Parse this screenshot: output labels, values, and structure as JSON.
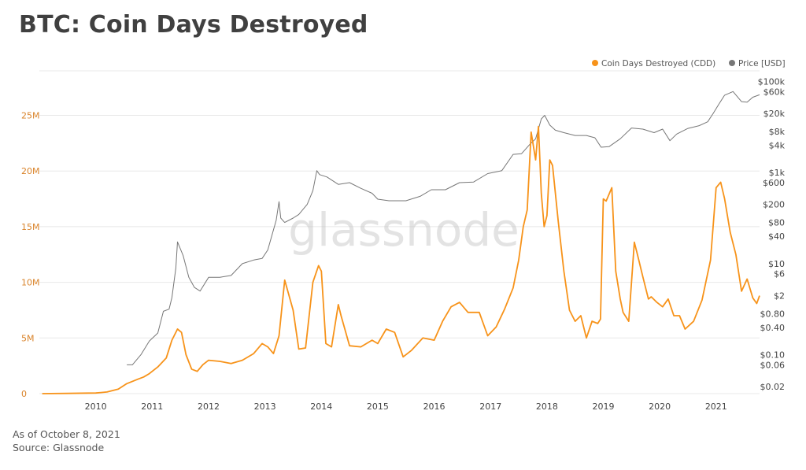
{
  "title": "BTC: Coin Days Destroyed",
  "footer": {
    "as_of": "As of October 8, 2021",
    "source": "Source: Glassnode"
  },
  "watermark": "glassnode",
  "colors": {
    "cdd": "#f7931a",
    "price": "#777777",
    "cdd_axis": "#d9832a",
    "axis_text": "#444444",
    "grid": "#e8e8e8"
  },
  "chart_data": {
    "type": "line",
    "title": "BTC: Coin Days Destroyed",
    "legend": {
      "placement": "top-right",
      "entries": [
        "Coin Days Destroyed (CDD)",
        "Price [USD]"
      ]
    },
    "x_ticks": [
      "2010",
      "2011",
      "2012",
      "2013",
      "2014",
      "2015",
      "2016",
      "2017",
      "2018",
      "2019",
      "2020",
      "2021"
    ],
    "x_range": [
      2009.0,
      2021.77
    ],
    "y_left": {
      "label": "",
      "ticks": [
        "0",
        "5M",
        "10M",
        "15M",
        "20M",
        "25M"
      ],
      "tick_values": [
        0,
        5000000,
        10000000,
        15000000,
        20000000,
        25000000
      ],
      "range": [
        0,
        29000000
      ],
      "scale": "linear"
    },
    "y_right": {
      "label": "",
      "ticks": [
        "$100k",
        "$60k",
        "$20k",
        "$8k",
        "$4k",
        "$1k",
        "$600",
        "$200",
        "$80",
        "$40",
        "$10",
        "$6",
        "$2",
        "$0.80",
        "$0.40",
        "$0.10",
        "$0.06",
        "$0.02"
      ],
      "tick_values": [
        100000,
        60000,
        20000,
        8000,
        4000,
        1000,
        600,
        200,
        80,
        40,
        10,
        6,
        2,
        0.8,
        0.4,
        0.1,
        0.06,
        0.02
      ],
      "scale": "log"
    },
    "grid": true,
    "series": [
      {
        "name": "Coin Days Destroyed (CDD)",
        "axis": "left",
        "x": [
          2009.05,
          2009.5,
          2010.0,
          2010.2,
          2010.4,
          2010.55,
          2010.75,
          2010.85,
          2010.95,
          2011.1,
          2011.25,
          2011.35,
          2011.45,
          2011.52,
          2011.6,
          2011.7,
          2011.8,
          2011.9,
          2012.0,
          2012.2,
          2012.4,
          2012.6,
          2012.8,
          2012.95,
          2013.05,
          2013.15,
          2013.25,
          2013.35,
          2013.5,
          2013.6,
          2013.72,
          2013.85,
          2013.95,
          2014.0,
          2014.08,
          2014.18,
          2014.3,
          2014.35,
          2014.5,
          2014.7,
          2014.9,
          2015.0,
          2015.15,
          2015.3,
          2015.45,
          2015.6,
          2015.8,
          2016.0,
          2016.15,
          2016.3,
          2016.45,
          2016.6,
          2016.8,
          2016.95,
          2017.1,
          2017.25,
          2017.4,
          2017.5,
          2017.58,
          2017.65,
          2017.72,
          2017.8,
          2017.85,
          2017.9,
          2017.95,
          2018.0,
          2018.05,
          2018.1,
          2018.2,
          2018.3,
          2018.4,
          2018.5,
          2018.6,
          2018.7,
          2018.8,
          2018.9,
          2018.95,
          2019.0,
          2019.05,
          2019.15,
          2019.22,
          2019.3,
          2019.35,
          2019.45,
          2019.55,
          2019.6,
          2019.7,
          2019.8,
          2019.85,
          2019.95,
          2020.05,
          2020.15,
          2020.25,
          2020.35,
          2020.45,
          2020.6,
          2020.75,
          2020.9,
          2021.0,
          2021.08,
          2021.15,
          2021.25,
          2021.35,
          2021.45,
          2021.55,
          2021.65,
          2021.72,
          2021.77
        ],
        "y": [
          0,
          20000,
          60000,
          150000,
          400000,
          900000,
          1300000,
          1500000,
          1800000,
          2400000,
          3200000,
          4800000,
          5800000,
          5500000,
          3500000,
          2200000,
          2000000,
          2600000,
          3000000,
          2900000,
          2700000,
          3000000,
          3600000,
          4500000,
          4200000,
          3600000,
          5200000,
          10200000,
          7500000,
          4000000,
          4100000,
          10000000,
          11500000,
          11000000,
          4500000,
          4200000,
          8000000,
          7000000,
          4300000,
          4200000,
          4800000,
          4500000,
          5800000,
          5500000,
          3300000,
          3900000,
          5000000,
          4800000,
          6500000,
          7800000,
          8200000,
          7300000,
          7300000,
          5200000,
          6000000,
          7600000,
          9500000,
          12000000,
          15000000,
          16500000,
          23500000,
          21000000,
          24000000,
          18000000,
          15000000,
          16000000,
          21000000,
          20500000,
          15500000,
          11000000,
          7500000,
          6500000,
          7000000,
          5000000,
          6500000,
          6300000,
          6700000,
          17500000,
          17300000,
          18500000,
          11000000,
          8500000,
          7300000,
          6500000,
          13600000,
          12600000,
          10500000,
          8500000,
          8700000,
          8200000,
          7800000,
          8500000,
          7000000,
          7000000,
          5800000,
          6500000,
          8400000,
          12000000,
          18500000,
          19000000,
          17500000,
          14500000,
          12500000,
          9200000,
          10300000,
          8600000,
          8100000,
          8800000
        ]
      },
      {
        "name": "Price [USD]",
        "axis": "right",
        "x": [
          2010.55,
          2010.65,
          2010.8,
          2010.95,
          2011.1,
          2011.2,
          2011.3,
          2011.35,
          2011.42,
          2011.45,
          2011.55,
          2011.65,
          2011.75,
          2011.85,
          2012.0,
          2012.2,
          2012.4,
          2012.6,
          2012.8,
          2012.95,
          2013.05,
          2013.2,
          2013.25,
          2013.28,
          2013.35,
          2013.5,
          2013.6,
          2013.75,
          2013.85,
          2013.92,
          2013.97,
          2014.1,
          2014.3,
          2014.5,
          2014.7,
          2014.9,
          2015.0,
          2015.2,
          2015.5,
          2015.75,
          2015.95,
          2016.2,
          2016.45,
          2016.7,
          2016.95,
          2017.2,
          2017.4,
          2017.55,
          2017.7,
          2017.8,
          2017.9,
          2017.96,
          2018.05,
          2018.15,
          2018.3,
          2018.5,
          2018.7,
          2018.85,
          2018.96,
          2019.1,
          2019.3,
          2019.5,
          2019.7,
          2019.9,
          2020.05,
          2020.18,
          2020.3,
          2020.5,
          2020.7,
          2020.85,
          2020.95,
          2021.05,
          2021.15,
          2021.3,
          2021.45,
          2021.55,
          2021.65,
          2021.77
        ],
        "y": [
          0.06,
          0.06,
          0.1,
          0.2,
          0.3,
          0.9,
          1.0,
          1.8,
          8,
          30,
          15,
          5,
          3,
          2.5,
          5,
          5,
          5.5,
          10,
          12,
          13,
          20,
          90,
          230,
          100,
          80,
          100,
          120,
          200,
          400,
          1100,
          900,
          800,
          550,
          600,
          450,
          350,
          260,
          240,
          240,
          300,
          420,
          420,
          600,
          620,
          950,
          1100,
          2500,
          2600,
          4200,
          5500,
          15000,
          18000,
          11000,
          8500,
          7500,
          6500,
          6500,
          5800,
          3600,
          3700,
          5500,
          9500,
          9000,
          7500,
          9000,
          5000,
          7000,
          9300,
          10700,
          13000,
          20000,
          32000,
          50000,
          60000,
          36000,
          35000,
          45000,
          51000
        ]
      }
    ]
  }
}
